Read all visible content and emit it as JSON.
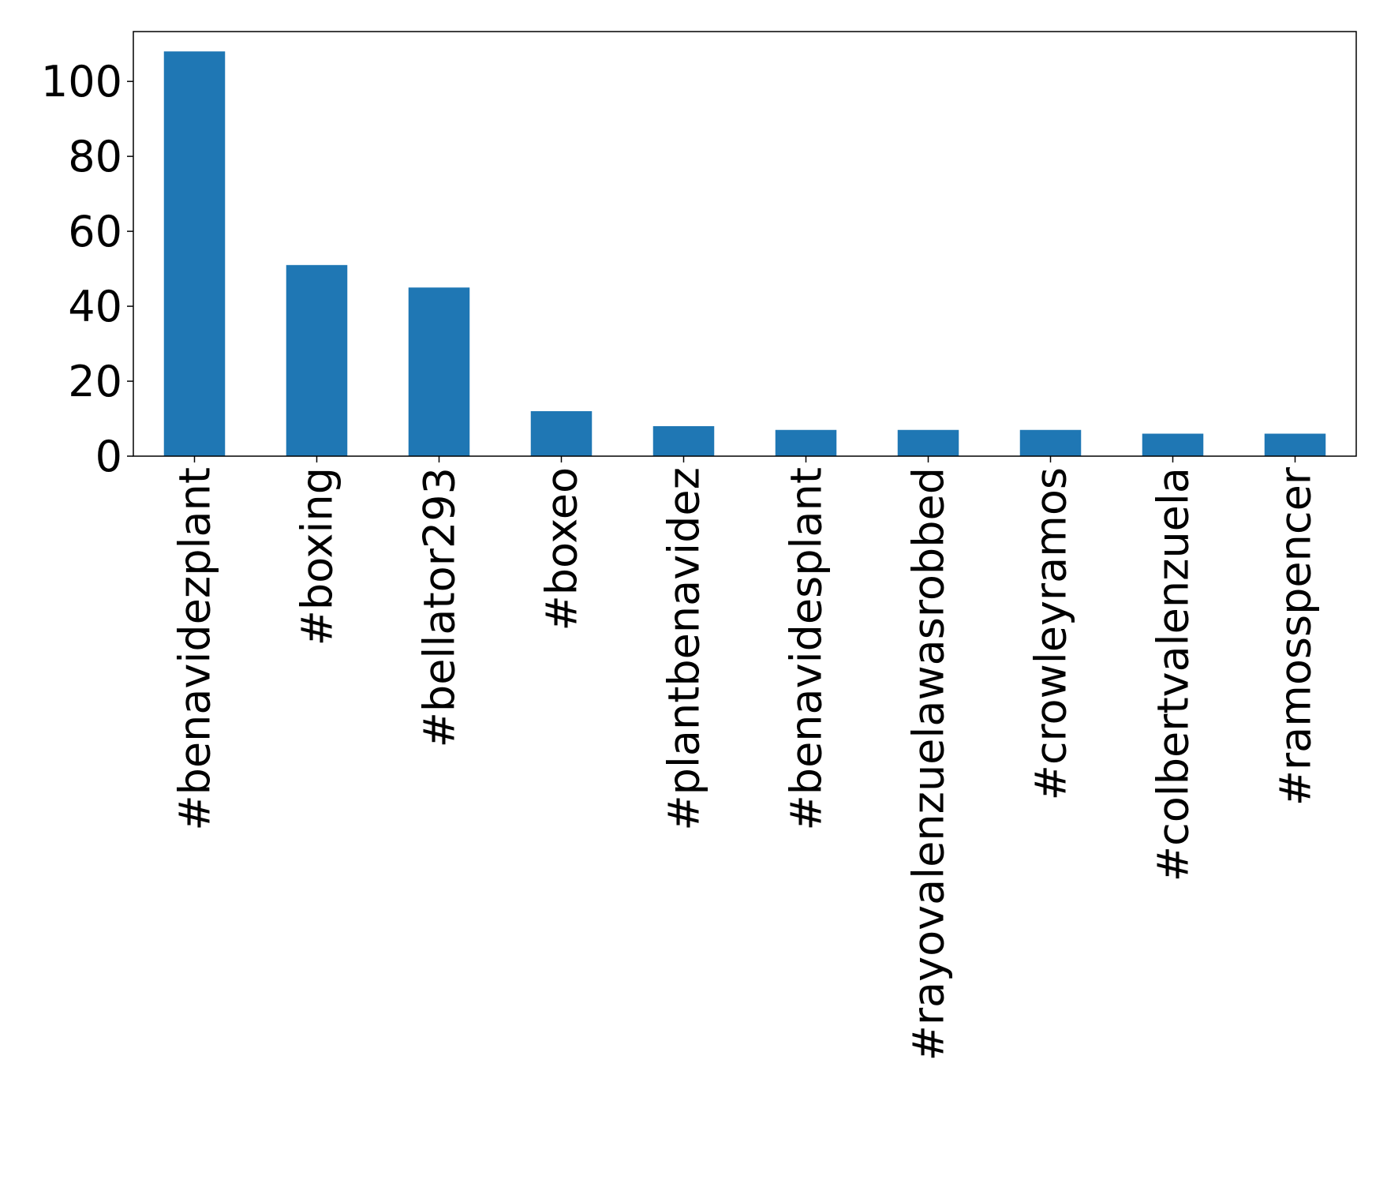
{
  "chart_data": {
    "type": "bar",
    "categories": [
      "#benavidezplant",
      "#boxing",
      "#bellator293",
      "#boxeo",
      "#plantbenavidez",
      "#benavidesplant",
      "#rayovalenzuelawasrobbed",
      "#crowleyramos",
      "#colbertvalenzuela",
      "#ramosspencer"
    ],
    "values": [
      108,
      51,
      45,
      12,
      8,
      7,
      7,
      7,
      6,
      6
    ],
    "color": "#1f77b4",
    "ylim": [
      0,
      113.3
    ],
    "yticks": [
      0,
      20,
      40,
      60,
      80,
      100
    ],
    "grid": false
  }
}
